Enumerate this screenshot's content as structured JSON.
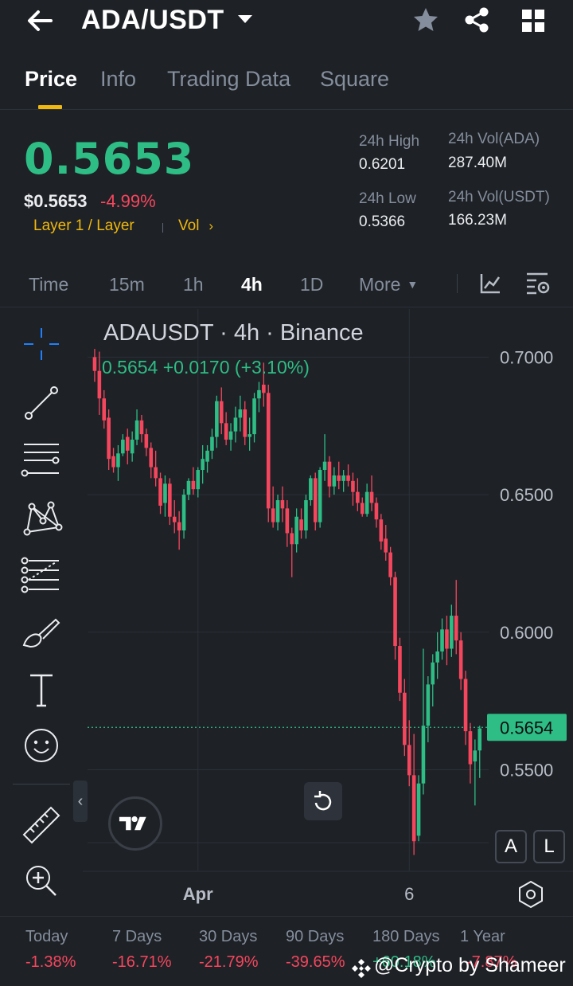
{
  "header": {
    "pair": "ADA/USDT"
  },
  "tabs": [
    "Price",
    "Info",
    "Trading Data",
    "Square"
  ],
  "price": {
    "last": "0.5653",
    "usd": "$0.5653",
    "change": "-4.99%",
    "tag_layer": "Layer 1 / Layer",
    "tag_vol": "Vol"
  },
  "stats": {
    "high_label": "24h High",
    "high_value": "0.6201",
    "low_label": "24h Low",
    "low_value": "0.5366",
    "vol_ada_label": "24h Vol(ADA)",
    "vol_ada_value": "287.40M",
    "vol_usdt_label": "24h Vol(USDT)",
    "vol_usdt_value": "166.23M"
  },
  "intervals": [
    "Time",
    "15m",
    "1h",
    "4h",
    "1D",
    "More"
  ],
  "active_interval": "4h",
  "chart": {
    "title": "ADAUSDT · 4h · Binance",
    "legend": "0.5654  +0.0170 (+3.10%)",
    "current_price": "0.5654",
    "x_labels": [
      "Apr",
      "6"
    ],
    "scale_buttons": [
      "A",
      "L"
    ]
  },
  "chart_data": {
    "type": "candlestick",
    "title": "ADAUSDT · 4h · Binance",
    "y_ticks": [
      "0.7000",
      "0.6500",
      "0.6000",
      "0.5500"
    ],
    "ylim": [
      0.5148,
      0.7175
    ],
    "x_ticks": [
      {
        "label": "Apr",
        "index": 22
      },
      {
        "label": "6",
        "index": 67
      }
    ],
    "last_price": 0.5654,
    "candles": [
      [
        0.7,
        0.703,
        0.691,
        0.695
      ],
      [
        0.695,
        0.702,
        0.679,
        0.685
      ],
      [
        0.685,
        0.688,
        0.674,
        0.677
      ],
      [
        0.678,
        0.681,
        0.659,
        0.663
      ],
      [
        0.664,
        0.667,
        0.658,
        0.66
      ],
      [
        0.66,
        0.668,
        0.655,
        0.665
      ],
      [
        0.665,
        0.672,
        0.664,
        0.67
      ],
      [
        0.671,
        0.674,
        0.661,
        0.666
      ],
      [
        0.665,
        0.673,
        0.662,
        0.67
      ],
      [
        0.67,
        0.681,
        0.668,
        0.677
      ],
      [
        0.677,
        0.679,
        0.669,
        0.672
      ],
      [
        0.672,
        0.674,
        0.664,
        0.667
      ],
      [
        0.667,
        0.669,
        0.656,
        0.66
      ],
      [
        0.66,
        0.666,
        0.653,
        0.656
      ],
      [
        0.656,
        0.658,
        0.643,
        0.646
      ],
      [
        0.647,
        0.657,
        0.642,
        0.654
      ],
      [
        0.654,
        0.656,
        0.639,
        0.642
      ],
      [
        0.642,
        0.648,
        0.636,
        0.64
      ],
      [
        0.64,
        0.644,
        0.63,
        0.637
      ],
      [
        0.637,
        0.652,
        0.634,
        0.65
      ],
      [
        0.65,
        0.656,
        0.648,
        0.655
      ],
      [
        0.655,
        0.66,
        0.65,
        0.652
      ],
      [
        0.652,
        0.66,
        0.649,
        0.659
      ],
      [
        0.659,
        0.668,
        0.654,
        0.663
      ],
      [
        0.662,
        0.668,
        0.658,
        0.666
      ],
      [
        0.666,
        0.674,
        0.663,
        0.671
      ],
      [
        0.671,
        0.686,
        0.667,
        0.684
      ],
      [
        0.684,
        0.689,
        0.672,
        0.676
      ],
      [
        0.676,
        0.68,
        0.668,
        0.67
      ],
      [
        0.67,
        0.676,
        0.666,
        0.673
      ],
      [
        0.673,
        0.682,
        0.669,
        0.678
      ],
      [
        0.678,
        0.686,
        0.673,
        0.681
      ],
      [
        0.681,
        0.684,
        0.668,
        0.671
      ],
      [
        0.671,
        0.678,
        0.666,
        0.672
      ],
      [
        0.672,
        0.687,
        0.669,
        0.685
      ],
      [
        0.685,
        0.691,
        0.68,
        0.688
      ],
      [
        0.69,
        0.698,
        0.682,
        0.687
      ],
      [
        0.687,
        0.69,
        0.64,
        0.645
      ],
      [
        0.645,
        0.653,
        0.638,
        0.64
      ],
      [
        0.64,
        0.65,
        0.637,
        0.648
      ],
      [
        0.648,
        0.653,
        0.64,
        0.645
      ],
      [
        0.645,
        0.648,
        0.631,
        0.636
      ],
      [
        0.636,
        0.638,
        0.62,
        0.632
      ],
      [
        0.632,
        0.645,
        0.629,
        0.642
      ],
      [
        0.641,
        0.645,
        0.634,
        0.637
      ],
      [
        0.637,
        0.65,
        0.634,
        0.648
      ],
      [
        0.648,
        0.657,
        0.646,
        0.656
      ],
      [
        0.656,
        0.658,
        0.637,
        0.64
      ],
      [
        0.64,
        0.66,
        0.638,
        0.659
      ],
      [
        0.659,
        0.672,
        0.655,
        0.662
      ],
      [
        0.662,
        0.664,
        0.649,
        0.653
      ],
      [
        0.653,
        0.66,
        0.65,
        0.657
      ],
      [
        0.657,
        0.662,
        0.652,
        0.655
      ],
      [
        0.655,
        0.659,
        0.651,
        0.657
      ],
      [
        0.657,
        0.661,
        0.653,
        0.655
      ],
      [
        0.655,
        0.658,
        0.646,
        0.651
      ],
      [
        0.651,
        0.656,
        0.644,
        0.647
      ],
      [
        0.647,
        0.649,
        0.642,
        0.643
      ],
      [
        0.643,
        0.654,
        0.642,
        0.651
      ],
      [
        0.651,
        0.657,
        0.644,
        0.647
      ],
      [
        0.647,
        0.649,
        0.638,
        0.641
      ],
      [
        0.641,
        0.643,
        0.63,
        0.633
      ],
      [
        0.634,
        0.639,
        0.626,
        0.629
      ],
      [
        0.629,
        0.631,
        0.617,
        0.62
      ],
      [
        0.62,
        0.622,
        0.59,
        0.595
      ],
      [
        0.595,
        0.598,
        0.575,
        0.578
      ],
      [
        0.578,
        0.583,
        0.555,
        0.559
      ],
      [
        0.559,
        0.568,
        0.544,
        0.548
      ],
      [
        0.548,
        0.563,
        0.519,
        0.524
      ],
      [
        0.526,
        0.548,
        0.524,
        0.545
      ],
      [
        0.545,
        0.594,
        0.541,
        0.566
      ],
      [
        0.566,
        0.584,
        0.56,
        0.581
      ],
      [
        0.581,
        0.592,
        0.573,
        0.589
      ],
      [
        0.589,
        0.6,
        0.583,
        0.593
      ],
      [
        0.593,
        0.605,
        0.59,
        0.601
      ],
      [
        0.601,
        0.606,
        0.588,
        0.594
      ],
      [
        0.594,
        0.61,
        0.591,
        0.606
      ],
      [
        0.606,
        0.619,
        0.592,
        0.597
      ],
      [
        0.597,
        0.6,
        0.579,
        0.583
      ],
      [
        0.583,
        0.586,
        0.559,
        0.564
      ],
      [
        0.564,
        0.567,
        0.545,
        0.552
      ],
      [
        0.553,
        0.561,
        0.537,
        0.557
      ],
      [
        0.557,
        0.566,
        0.547,
        0.565
      ]
    ]
  },
  "performance": {
    "labels": [
      "Today",
      "7 Days",
      "30 Days",
      "90 Days",
      "180 Days",
      "1 Year"
    ],
    "values": [
      "-1.38%",
      "-16.71%",
      "-21.79%",
      "-39.65%",
      "+60.18%",
      "-7.87%"
    ]
  },
  "watermark": "@Crypto by Shameer",
  "colors": {
    "up": "#2ebd85",
    "down": "#f6465d",
    "accent": "#f0b90b",
    "bg": "#1e2126"
  }
}
